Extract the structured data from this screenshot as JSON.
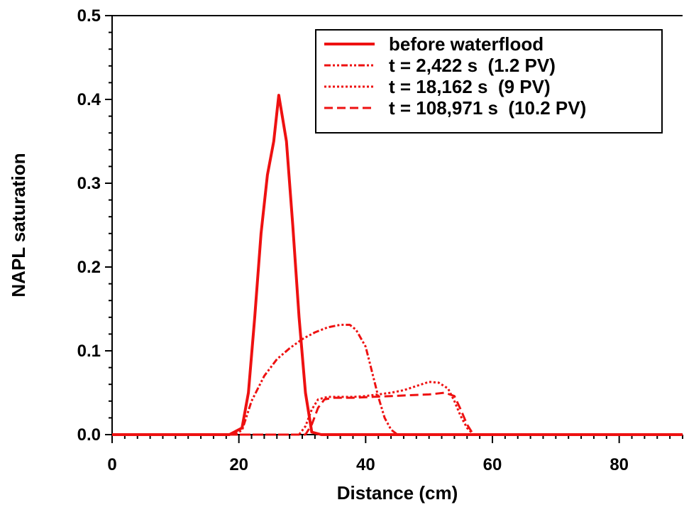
{
  "chart_data": {
    "type": "line",
    "title": "",
    "xlabel": "Distance (cm)",
    "ylabel": "NAPL saturation",
    "xlim": [
      0,
      90
    ],
    "ylim": [
      0,
      0.5
    ],
    "xticks": [
      0,
      20,
      40,
      60,
      80
    ],
    "xtick_labels": [
      "0",
      "20",
      "40",
      "60",
      "80"
    ],
    "yticks": [
      0,
      0.1,
      0.2,
      0.3,
      0.4,
      0.5
    ],
    "ytick_labels": [
      "0.0",
      "0.1",
      "0.2",
      "0.3",
      "0.4",
      "0.5"
    ],
    "grid": false,
    "legend_position": "top-right",
    "color": "#ee1111",
    "series": [
      {
        "name": "before waterflood",
        "style": "solid",
        "x": [
          0,
          18.5,
          20.5,
          21.5,
          22.5,
          23.5,
          24.5,
          25.5,
          26.3,
          27.5,
          28.5,
          29.5,
          30.5,
          31.5,
          33,
          40,
          60,
          90
        ],
        "y": [
          0,
          0,
          0.008,
          0.05,
          0.14,
          0.24,
          0.31,
          0.35,
          0.405,
          0.35,
          0.25,
          0.14,
          0.05,
          0.003,
          0,
          0,
          0,
          0
        ]
      },
      {
        "name": "t = 2,422 s  (1.2 PV)",
        "style": "dash-dot-dot",
        "x": [
          0,
          19,
          20.5,
          22,
          24,
          26,
          28,
          30,
          32,
          34,
          36,
          37.5,
          38.5,
          40,
          41,
          42,
          43,
          44,
          45,
          60,
          90
        ],
        "y": [
          0,
          0,
          0.005,
          0.04,
          0.07,
          0.09,
          0.103,
          0.114,
          0.122,
          0.128,
          0.131,
          0.131,
          0.125,
          0.105,
          0.075,
          0.045,
          0.02,
          0.006,
          0,
          0,
          0
        ]
      },
      {
        "name": "t = 18,162 s  (9 PV)",
        "style": "dotted",
        "x": [
          0,
          29.5,
          30.5,
          31.5,
          32.5,
          34,
          36,
          38,
          40,
          42,
          44,
          46,
          48,
          50,
          51.5,
          53,
          54,
          55,
          56,
          57,
          60,
          90
        ],
        "y": [
          0,
          0,
          0.01,
          0.03,
          0.042,
          0.045,
          0.045,
          0.045,
          0.046,
          0.048,
          0.05,
          0.053,
          0.058,
          0.063,
          0.062,
          0.055,
          0.04,
          0.022,
          0.008,
          0,
          0,
          0
        ]
      },
      {
        "name": "t = 108,971 s  (10.2 PV)",
        "style": "dashed",
        "x": [
          0,
          30.5,
          31.5,
          32.5,
          33.5,
          35,
          38,
          41,
          44,
          47,
          50,
          52.5,
          54,
          55,
          56,
          57,
          60,
          90
        ],
        "y": [
          0,
          0,
          0.012,
          0.032,
          0.042,
          0.044,
          0.044,
          0.045,
          0.046,
          0.047,
          0.048,
          0.05,
          0.046,
          0.03,
          0.012,
          0,
          0,
          0
        ]
      }
    ]
  }
}
